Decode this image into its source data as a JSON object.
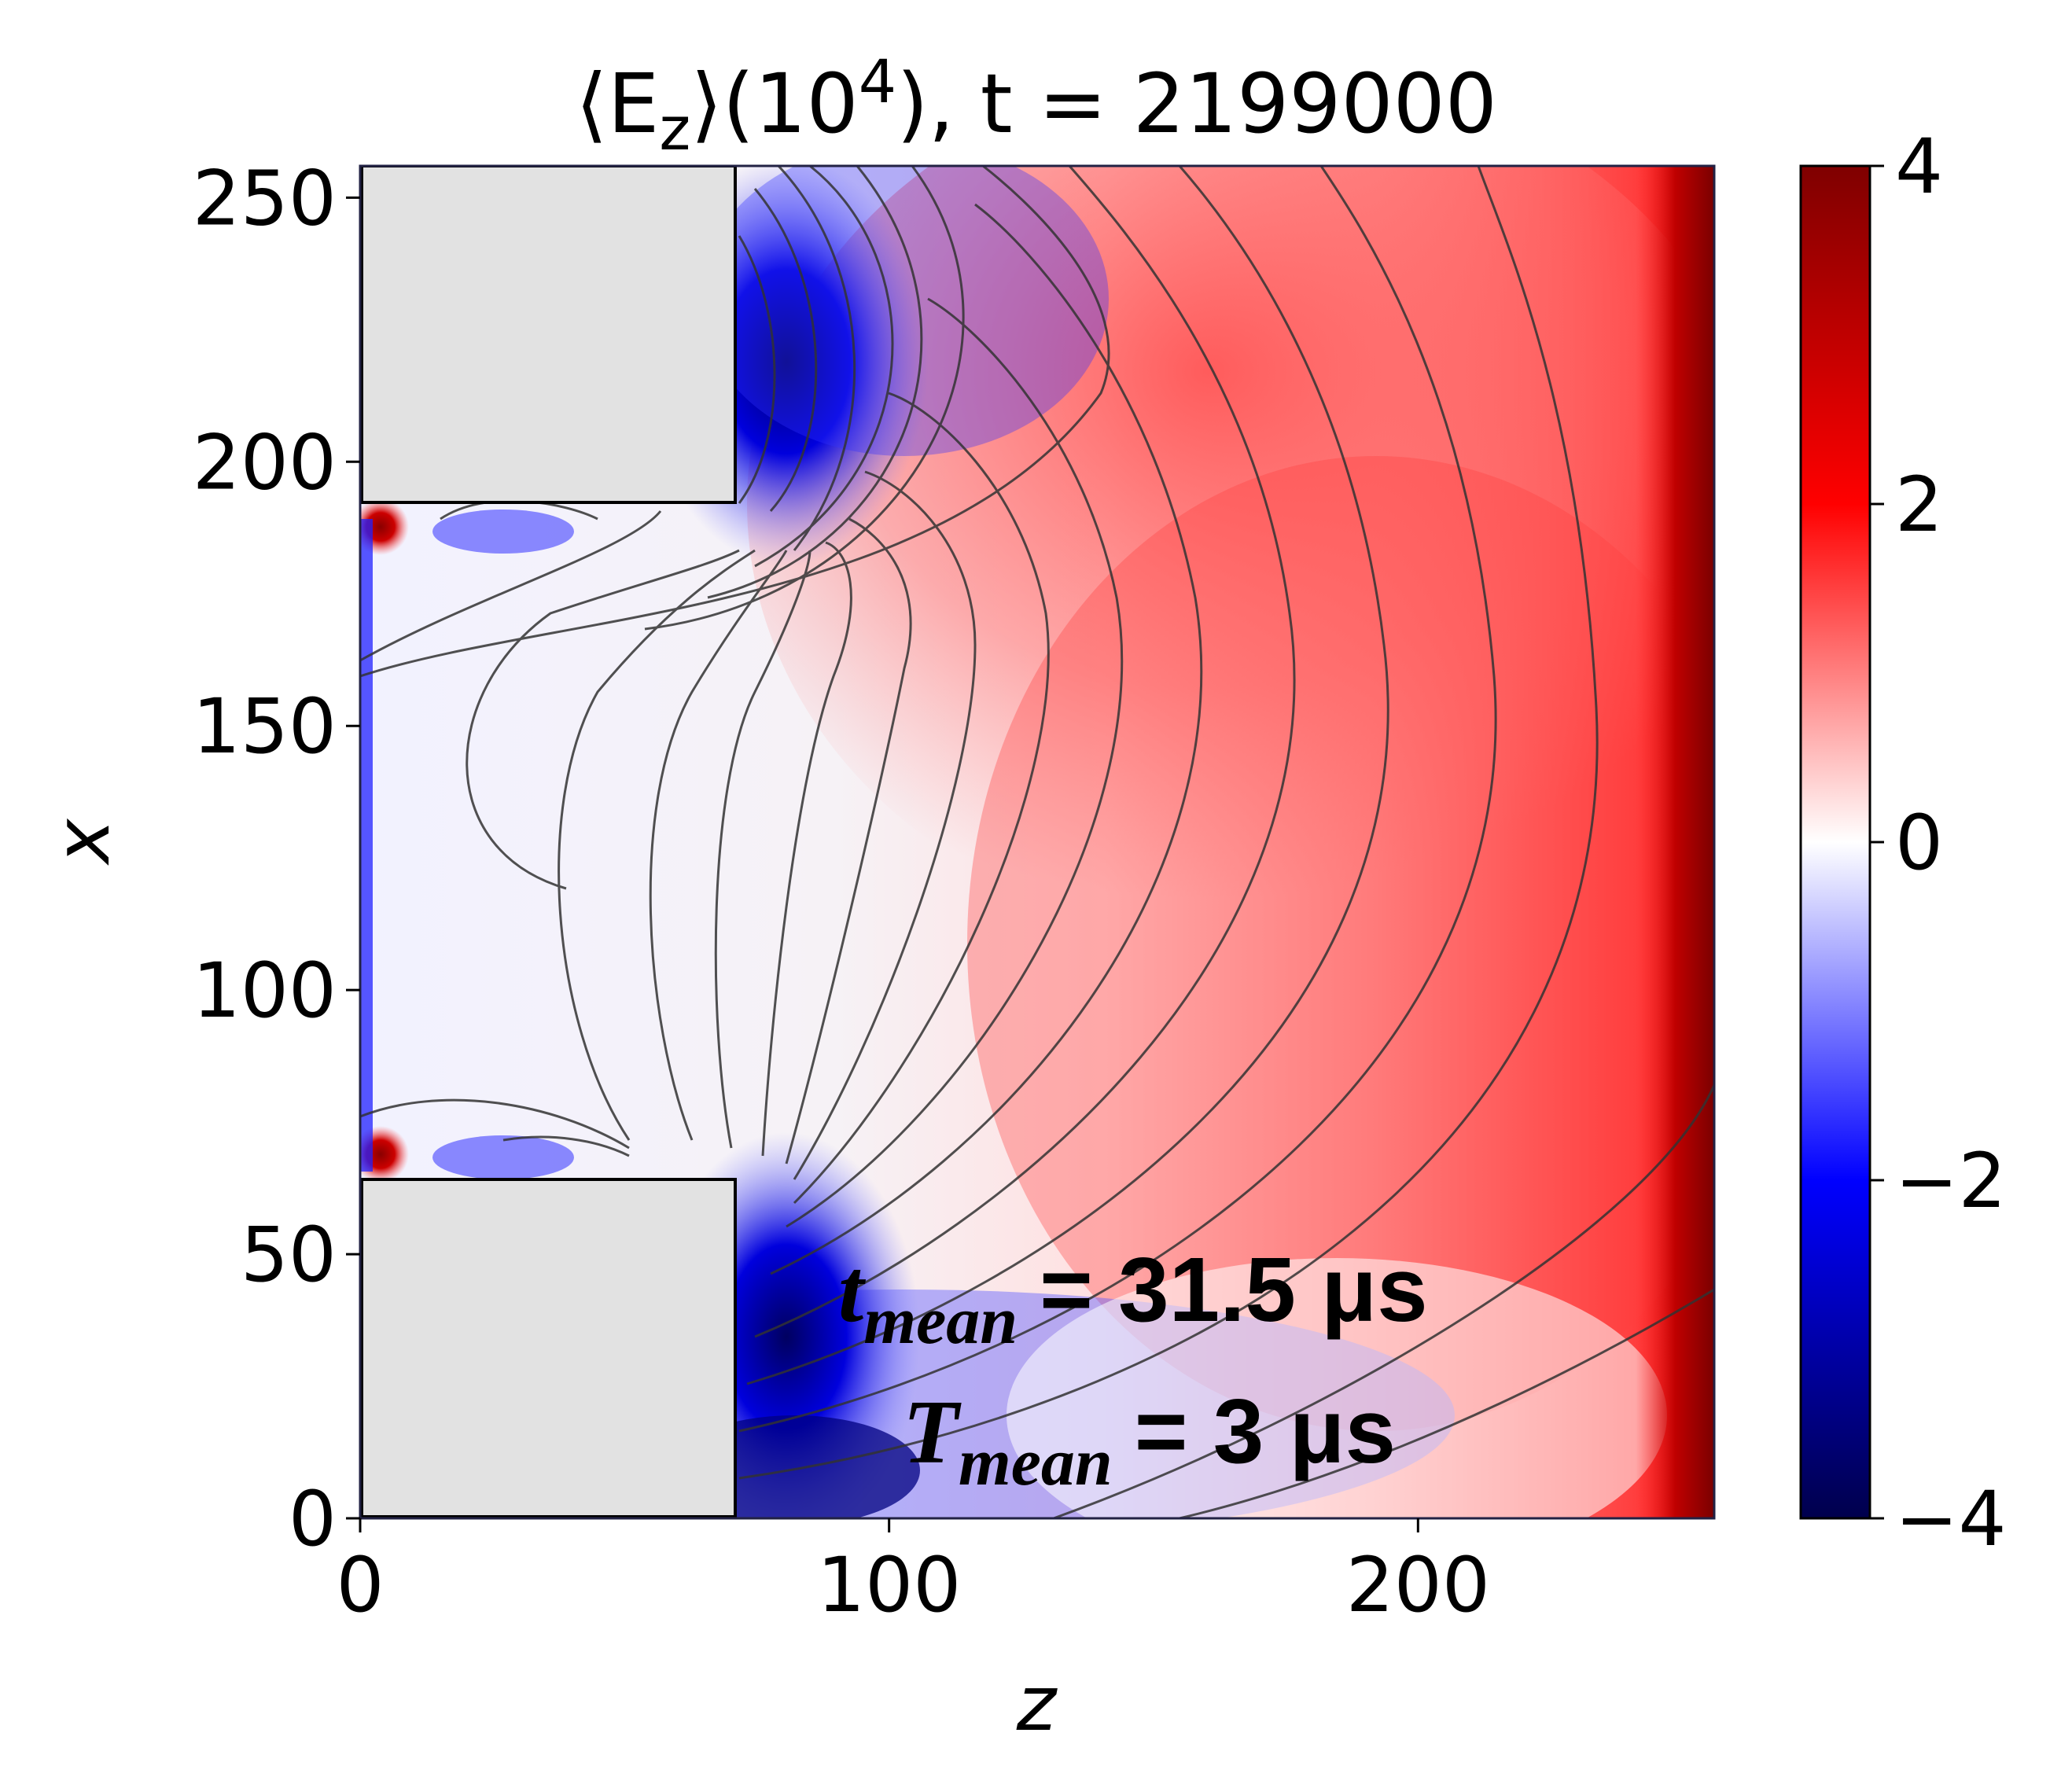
{
  "chart_data": {
    "type": "heatmap",
    "title_prefix": "⟨E",
    "title_sub": "z",
    "title_mid": "⟩(10",
    "title_sup": "4",
    "title_suffix": "), t = 2199000",
    "xlabel": "z",
    "ylabel": "x",
    "xlim": [
      0,
      256
    ],
    "ylim": [
      0,
      256
    ],
    "x_ticks": [
      {
        "value": 0,
        "label": "0"
      },
      {
        "value": 100,
        "label": "100"
      },
      {
        "value": 200,
        "label": "200"
      }
    ],
    "y_ticks": [
      {
        "value": 0,
        "label": "0"
      },
      {
        "value": 50,
        "label": "50"
      },
      {
        "value": 100,
        "label": "100"
      },
      {
        "value": 150,
        "label": "150"
      },
      {
        "value": 200,
        "label": "200"
      },
      {
        "value": 250,
        "label": "250"
      }
    ],
    "colorbar": {
      "min": -4,
      "max": 4,
      "colormap": "seismic",
      "ticks": [
        {
          "value": 4,
          "label": "4"
        },
        {
          "value": 2,
          "label": "2"
        },
        {
          "value": 0,
          "label": "0"
        },
        {
          "value": -2,
          "label": "−2"
        },
        {
          "value": -4,
          "label": "−4"
        }
      ],
      "colors": [
        "#00004c",
        "#0000ff",
        "#ffffff",
        "#ff0000",
        "#7f0000"
      ]
    },
    "electrodes": [
      {
        "z": [
          0,
          71
        ],
        "x": [
          192,
          256
        ]
      },
      {
        "z": [
          0,
          71
        ],
        "x": [
          0,
          64
        ]
      }
    ],
    "annotations": {
      "t_mean_symbol": "t",
      "t_mean_sub": "mean",
      "t_mean_value": "= 31.5 μs",
      "T_mean_symbol": "T",
      "T_mean_sub": "mean",
      "T_mean_value": "= 3 μs"
    }
  }
}
